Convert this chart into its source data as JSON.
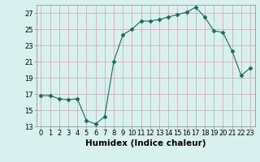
{
  "x": [
    0,
    1,
    2,
    3,
    4,
    5,
    6,
    7,
    8,
    9,
    10,
    11,
    12,
    13,
    14,
    15,
    16,
    17,
    18,
    19,
    20,
    21,
    22,
    23
  ],
  "y": [
    16.8,
    16.8,
    16.4,
    16.3,
    16.4,
    13.7,
    13.3,
    14.2,
    21.0,
    24.3,
    25.0,
    26.0,
    26.0,
    26.2,
    26.5,
    26.8,
    27.1,
    27.7,
    26.5,
    24.8,
    24.6,
    22.3,
    19.3,
    20.2
  ],
  "line_color": "#1a6b5a",
  "marker": "D",
  "marker_size": 2.5,
  "bg_color": "#d8f0ee",
  "grid_color": "#c0a8a8",
  "xlabel": "Humidex (Indice chaleur)",
  "ylim": [
    13,
    28
  ],
  "xlim": [
    -0.5,
    23.5
  ],
  "yticks": [
    13,
    15,
    17,
    19,
    21,
    23,
    25,
    27
  ],
  "xtick_labels": [
    "0",
    "1",
    "2",
    "3",
    "4",
    "5",
    "6",
    "7",
    "8",
    "9",
    "10",
    "11",
    "12",
    "13",
    "14",
    "15",
    "16",
    "17",
    "18",
    "19",
    "20",
    "21",
    "22",
    "23"
  ],
  "xlabel_fontsize": 7.5,
  "tick_fontsize": 6.0
}
